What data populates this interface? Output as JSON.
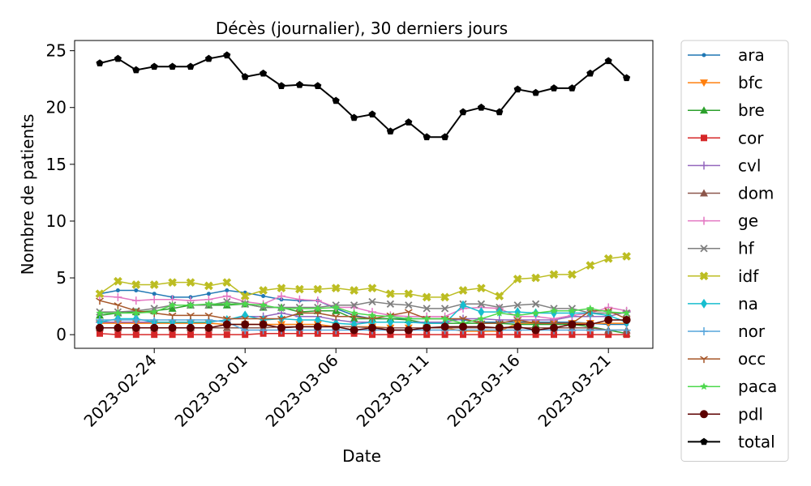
{
  "chart_data": {
    "type": "line",
    "title": "Décès (journalier), 30 derniers jours",
    "xlabel": "Date",
    "ylabel": "Nombre de patients",
    "x": [
      "2023-02-21",
      "2023-02-22",
      "2023-02-23",
      "2023-02-24",
      "2023-02-25",
      "2023-02-26",
      "2023-02-27",
      "2023-02-28",
      "2023-03-01",
      "2023-03-02",
      "2023-03-03",
      "2023-03-04",
      "2023-03-05",
      "2023-03-06",
      "2023-03-07",
      "2023-03-08",
      "2023-03-09",
      "2023-03-10",
      "2023-03-11",
      "2023-03-12",
      "2023-03-13",
      "2023-03-14",
      "2023-03-15",
      "2023-03-16",
      "2023-03-17",
      "2023-03-18",
      "2023-03-19",
      "2023-03-20",
      "2023-03-21",
      "2023-03-22"
    ],
    "xticks": [
      "2023-02-24",
      "2023-03-01",
      "2023-03-06",
      "2023-03-11",
      "2023-03-16",
      "2023-03-21"
    ],
    "ylim": [
      -1.2,
      25.9
    ],
    "yticks": [
      0,
      5,
      10,
      15,
      20,
      25
    ],
    "grid": false,
    "legend_position": "outside-right",
    "series": [
      {
        "name": "ara",
        "color": "#1f77b4",
        "marker": "point",
        "values": [
          3.6,
          3.9,
          3.9,
          3.6,
          3.3,
          3.3,
          3.6,
          3.9,
          3.7,
          3.4,
          3.1,
          3.0,
          3.0,
          2.3,
          1.7,
          1.4,
          1.4,
          1.4,
          1.4,
          1.4,
          1.3,
          1.1,
          1.1,
          1.1,
          1.1,
          1.1,
          1.1,
          1.0,
          0.9,
          0.9
        ]
      },
      {
        "name": "bfc",
        "color": "#ff7f0e",
        "marker": "triangle-down",
        "values": [
          1.0,
          1.0,
          1.0,
          1.0,
          1.0,
          1.0,
          1.0,
          0.9,
          0.9,
          0.9,
          0.9,
          0.9,
          0.9,
          0.7,
          0.7,
          0.7,
          0.6,
          0.6,
          0.6,
          0.6,
          0.3,
          0.3,
          0.3,
          1.0,
          1.0,
          1.0,
          1.0,
          1.0,
          1.0,
          1.0
        ]
      },
      {
        "name": "bre",
        "color": "#2ca02c",
        "marker": "triangle-up",
        "values": [
          1.7,
          1.9,
          2.0,
          2.1,
          2.3,
          2.6,
          2.6,
          2.6,
          2.7,
          2.4,
          2.4,
          2.0,
          2.1,
          2.1,
          1.4,
          1.4,
          1.4,
          1.3,
          1.0,
          1.0,
          1.0,
          1.0,
          1.0,
          0.9,
          0.9,
          0.9,
          0.9,
          0.7,
          0.4,
          0.1
        ]
      },
      {
        "name": "cor",
        "color": "#d62728",
        "marker": "square",
        "values": [
          0.1,
          0.0,
          0.0,
          0.0,
          0.0,
          0.0,
          0.0,
          0.0,
          0.0,
          0.1,
          0.1,
          0.1,
          0.1,
          0.1,
          0.1,
          0.0,
          0.0,
          0.0,
          0.0,
          0.0,
          0.0,
          0.0,
          0.0,
          0.0,
          0.0,
          0.0,
          0.0,
          0.0,
          0.0,
          0.0
        ]
      },
      {
        "name": "cvl",
        "color": "#9467bd",
        "marker": "plus",
        "values": [
          1.1,
          1.1,
          1.1,
          1.1,
          1.1,
          1.1,
          1.1,
          1.3,
          1.6,
          1.6,
          1.9,
          1.6,
          1.6,
          1.3,
          1.1,
          1.1,
          1.1,
          1.1,
          1.1,
          1.1,
          1.4,
          1.4,
          1.3,
          1.3,
          1.3,
          1.3,
          1.6,
          1.6,
          1.6,
          2.0
        ]
      },
      {
        "name": "dom",
        "color": "#8c564b",
        "marker": "triangle-up",
        "values": [
          0.6,
          0.6,
          0.6,
          0.6,
          0.6,
          0.6,
          0.6,
          0.6,
          0.6,
          0.6,
          0.7,
          0.7,
          0.7,
          0.7,
          0.7,
          0.6,
          0.6,
          0.6,
          0.6,
          0.6,
          0.6,
          0.6,
          0.6,
          0.6,
          0.6,
          0.6,
          0.6,
          0.6,
          0.4,
          0.4
        ]
      },
      {
        "name": "ge",
        "color": "#e377c2",
        "marker": "plus",
        "values": [
          3.4,
          3.3,
          3.0,
          3.1,
          3.1,
          3.0,
          3.1,
          3.4,
          2.9,
          2.7,
          3.4,
          3.1,
          3.0,
          2.4,
          2.4,
          2.0,
          1.7,
          1.6,
          1.6,
          1.6,
          2.3,
          2.4,
          2.3,
          1.6,
          1.6,
          1.4,
          1.7,
          1.9,
          2.4,
          2.1
        ]
      },
      {
        "name": "hf",
        "color": "#7f7f7f",
        "marker": "x",
        "values": [
          2.0,
          2.0,
          2.1,
          2.3,
          2.6,
          2.6,
          2.6,
          2.9,
          2.7,
          2.4,
          2.4,
          2.4,
          2.4,
          2.6,
          2.6,
          2.9,
          2.7,
          2.6,
          2.3,
          2.3,
          2.7,
          2.7,
          2.4,
          2.6,
          2.7,
          2.3,
          2.3,
          1.9,
          1.9,
          1.9
        ]
      },
      {
        "name": "idf",
        "color": "#bcbd22",
        "marker": "x-filled",
        "values": [
          3.6,
          4.7,
          4.4,
          4.4,
          4.6,
          4.6,
          4.3,
          4.6,
          3.4,
          3.9,
          4.1,
          4.0,
          4.0,
          4.1,
          3.9,
          4.1,
          3.6,
          3.6,
          3.3,
          3.3,
          3.9,
          4.1,
          3.4,
          4.9,
          5.0,
          5.3,
          5.3,
          6.1,
          6.7,
          6.9
        ]
      },
      {
        "name": "na",
        "color": "#17becf",
        "marker": "diamond",
        "values": [
          1.1,
          1.4,
          1.4,
          1.1,
          1.1,
          1.1,
          1.1,
          1.3,
          1.7,
          1.3,
          1.4,
          1.3,
          1.3,
          1.0,
          0.9,
          1.1,
          1.1,
          1.1,
          1.0,
          1.0,
          2.6,
          2.0,
          2.0,
          2.0,
          1.9,
          1.9,
          1.9,
          1.9,
          1.7,
          1.1
        ]
      },
      {
        "name": "nor",
        "color": "#56a5dc",
        "marker": "plus",
        "values": [
          1.3,
          1.3,
          1.3,
          1.3,
          1.3,
          1.3,
          1.3,
          1.1,
          0.4,
          0.4,
          0.4,
          0.4,
          0.4,
          0.4,
          0.4,
          0.4,
          0.4,
          0.4,
          0.4,
          0.4,
          0.4,
          0.4,
          0.4,
          0.4,
          0.4,
          0.4,
          0.4,
          0.4,
          0.4,
          0.4
        ]
      },
      {
        "name": "occ",
        "color": "#a65628",
        "marker": "tri",
        "values": [
          3.0,
          2.6,
          2.1,
          1.9,
          1.7,
          1.7,
          1.7,
          1.4,
          1.4,
          1.4,
          1.4,
          1.9,
          1.9,
          1.6,
          1.6,
          1.4,
          1.7,
          2.0,
          1.4,
          1.4,
          1.4,
          1.0,
          1.0,
          1.3,
          1.0,
          1.0,
          1.0,
          2.1,
          2.1,
          1.4
        ]
      },
      {
        "name": "paca",
        "color": "#4dd84d",
        "marker": "star",
        "values": [
          1.9,
          1.9,
          1.9,
          2.0,
          2.6,
          2.6,
          2.7,
          2.7,
          2.7,
          2.6,
          2.3,
          2.3,
          2.3,
          2.4,
          1.9,
          1.7,
          1.6,
          1.4,
          1.4,
          1.4,
          1.0,
          1.4,
          1.9,
          1.7,
          1.9,
          2.1,
          2.1,
          2.3,
          2.0,
          1.9
        ]
      },
      {
        "name": "pdl",
        "color": "#5c0000",
        "marker": "circle",
        "values": [
          0.6,
          0.6,
          0.6,
          0.6,
          0.6,
          0.6,
          0.6,
          0.9,
          0.9,
          0.9,
          0.6,
          0.7,
          0.7,
          0.7,
          0.4,
          0.6,
          0.4,
          0.4,
          0.6,
          0.7,
          0.7,
          0.7,
          0.6,
          0.7,
          0.4,
          0.6,
          0.9,
          0.9,
          1.3,
          1.3
        ]
      },
      {
        "name": "total",
        "color": "#000000",
        "marker": "pentagon",
        "values": [
          23.9,
          24.3,
          23.3,
          23.6,
          23.6,
          23.6,
          24.3,
          24.6,
          22.7,
          23.0,
          21.9,
          22.0,
          21.9,
          20.6,
          19.1,
          19.4,
          17.9,
          18.7,
          17.4,
          17.4,
          19.6,
          20.0,
          19.6,
          21.6,
          21.3,
          21.7,
          21.7,
          23.0,
          24.1,
          22.6
        ]
      }
    ]
  }
}
